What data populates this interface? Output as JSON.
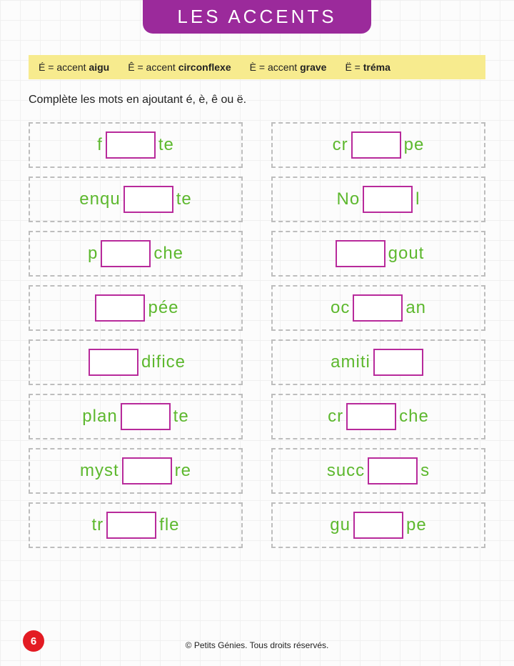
{
  "header": {
    "title": "LES ACCENTS"
  },
  "legend": {
    "items": [
      {
        "char": "É",
        "label": "accent",
        "bold": "aigu"
      },
      {
        "char": "Ê",
        "label": "accent",
        "bold": "circonflexe"
      },
      {
        "char": "È",
        "label": "accent",
        "bold": "grave"
      },
      {
        "char": "Ë",
        "label": "",
        "bold": "tréma"
      }
    ]
  },
  "instruction": "Complète les mots en ajoutant é, è, ê ou ë.",
  "words": {
    "left": [
      {
        "pre": "f",
        "post": "te"
      },
      {
        "pre": "enqu",
        "post": "te"
      },
      {
        "pre": "p",
        "post": "che"
      },
      {
        "pre": "",
        "post": "pée"
      },
      {
        "pre": "",
        "post": "difice"
      },
      {
        "pre": "plan",
        "post": "te"
      },
      {
        "pre": "myst",
        "post": "re"
      },
      {
        "pre": "tr",
        "post": "fle"
      }
    ],
    "right": [
      {
        "pre": "cr",
        "post": "pe"
      },
      {
        "pre": "No",
        "post": "l"
      },
      {
        "pre": "",
        "post": "gout"
      },
      {
        "pre": "oc",
        "post": "an"
      },
      {
        "pre": "amiti",
        "post": ""
      },
      {
        "pre": "cr",
        "post": "che"
      },
      {
        "pre": "succ",
        "post": "s"
      },
      {
        "pre": "gu",
        "post": "pe"
      }
    ]
  },
  "page_number": "6",
  "copyright": "© Petits Génies. Tous droits réservés.",
  "colors": {
    "banner_bg": "#9b2a9b",
    "legend_bg": "#f7eb8e",
    "word_color": "#5db82e",
    "blank_border": "#b82a9b",
    "dashed_border": "#bdbdbd",
    "page_badge": "#e31b23"
  }
}
